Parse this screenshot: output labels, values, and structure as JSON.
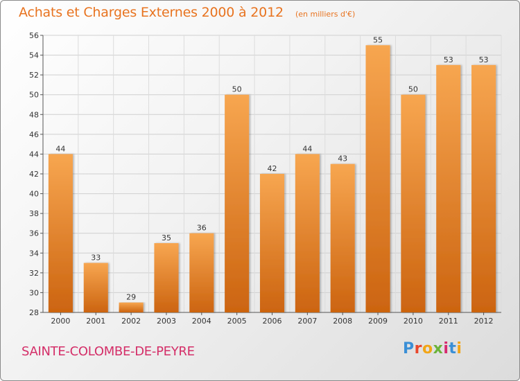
{
  "header": {
    "title": "Achats et Charges Externes 2000 à 2012",
    "unit": "(en milliers d'€)"
  },
  "footer": {
    "commune": "SAINTE-COLOMBE-DE-PEYRE",
    "logo": "Proxiti"
  },
  "colors": {
    "title": "#e8731f",
    "bar_top": "#f7a650",
    "bar_bottom": "#cc6410",
    "commune": "#d42e68"
  },
  "chart_data": {
    "type": "bar",
    "title": "Achats et Charges Externes 2000 à 2012",
    "subtitle": "(en milliers d'€)",
    "categories": [
      "2000",
      "2001",
      "2002",
      "2003",
      "2004",
      "2005",
      "2006",
      "2007",
      "2008",
      "2009",
      "2010",
      "2011",
      "2012"
    ],
    "values": [
      44,
      33,
      29,
      35,
      36,
      50,
      42,
      44,
      43,
      55,
      50,
      53,
      53
    ],
    "ylim": [
      28,
      56
    ],
    "yticks": [
      28,
      30,
      32,
      34,
      36,
      38,
      40,
      42,
      44,
      46,
      48,
      50,
      52,
      54,
      56
    ],
    "grid": true,
    "legend": "none"
  }
}
